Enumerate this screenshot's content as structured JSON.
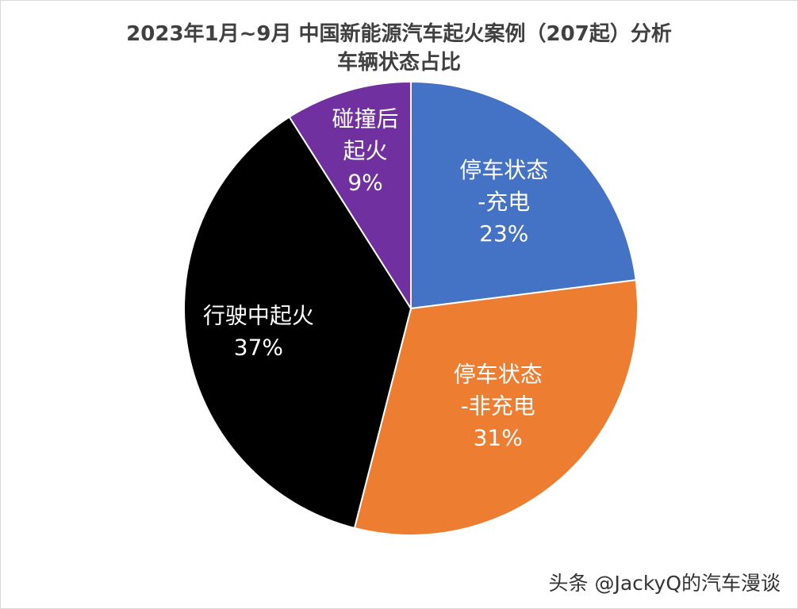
{
  "chart_data": {
    "type": "pie",
    "title": "2023年1月~9月  中国新能源汽车起火案例（207起）分析",
    "subtitle": "车辆状态占比",
    "unit": "%",
    "slices": [
      {
        "label_lines": [
          "停车状态",
          "-充电"
        ],
        "value": 23,
        "value_label": "23%",
        "color": "#4472c4"
      },
      {
        "label_lines": [
          "停车状态",
          "-非充电"
        ],
        "value": 31,
        "value_label": "31%",
        "color": "#ed7d31"
      },
      {
        "label_lines": [
          "行驶中起火"
        ],
        "value": 37,
        "value_label": "37%",
        "color": "#000000"
      },
      {
        "label_lines": [
          "碰撞后",
          "起火"
        ],
        "value": 9,
        "value_label": "9%",
        "color": "#7030a0"
      }
    ]
  },
  "watermark": "头条 @JackyQ的汽车漫谈"
}
